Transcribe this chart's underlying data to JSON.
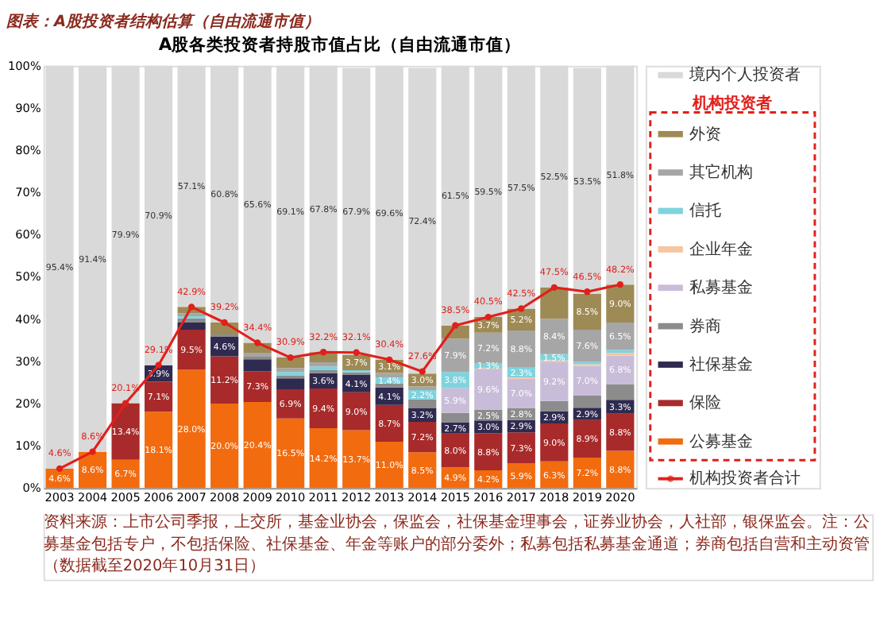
{
  "chart_data": {
    "type": "bar",
    "stacked": true,
    "title": "图表：A股投资者结构估算（自由流通市值）",
    "subtitle": "A股各类投资者持股市值占比（自由流通市值）",
    "categories": [
      "2003",
      "2004",
      "2005",
      "2006",
      "2007",
      "2008",
      "2009",
      "2010",
      "2011",
      "2012",
      "2013",
      "2014",
      "2015",
      "2016",
      "2017",
      "2018",
      "2019",
      "2020"
    ],
    "ylim": [
      0,
      100
    ],
    "yticks": [
      {
        "value": 0,
        "label": "0%"
      },
      {
        "value": 10,
        "label": "10%"
      },
      {
        "value": 20,
        "label": "20%"
      },
      {
        "value": 30,
        "label": "30%"
      },
      {
        "value": 40,
        "label": "40%"
      },
      {
        "value": 50,
        "label": "50%"
      },
      {
        "value": 60,
        "label": "60%"
      },
      {
        "value": 70,
        "label": "70%"
      },
      {
        "value": 80,
        "label": "80%"
      },
      {
        "value": 90,
        "label": "90%"
      },
      {
        "value": 100,
        "label": "100%"
      }
    ],
    "grid": false,
    "legend": "right",
    "legend_title": "机构投资者",
    "series": [
      {
        "name": "公募基金",
        "color": "#f26b0f",
        "values": [
          4.6,
          8.6,
          6.7,
          18.1,
          28.0,
          20.0,
          20.4,
          16.5,
          14.2,
          13.7,
          11.0,
          8.5,
          4.9,
          4.2,
          5.9,
          6.3,
          7.2,
          8.8
        ],
        "value_labels": [
          "4.6%",
          "8.6%",
          "6.7%",
          "18.1%",
          "28.0%",
          "20.0%",
          "20.4%",
          "16.5%",
          "14.2%",
          "13.7%",
          "11.0%",
          "8.5%",
          "4.9%",
          "4.2%",
          "5.9%",
          "6.3%",
          "7.2%",
          "8.8%"
        ]
      },
      {
        "name": "保险",
        "color": "#a82a2a",
        "values": [
          null,
          null,
          13.4,
          7.1,
          9.5,
          11.2,
          7.3,
          6.9,
          9.4,
          9.0,
          8.7,
          7.2,
          8.0,
          8.8,
          7.3,
          9.0,
          8.9,
          8.8
        ],
        "value_labels": [
          null,
          null,
          "13.4%",
          "7.1%",
          "9.5%",
          "11.2%",
          "7.3%",
          "6.9%",
          "9.4%",
          "9.0%",
          "8.7%",
          "7.2%",
          "8.0%",
          "8.8%",
          "7.3%",
          "9.0%",
          "8.9%",
          "8.8%"
        ]
      },
      {
        "name": "社保基金",
        "color": "#2f2a4f",
        "values": [
          null,
          null,
          null,
          3.9,
          1.7,
          4.6,
          2.8,
          2.6,
          3.6,
          4.1,
          4.1,
          3.2,
          2.7,
          3.0,
          2.9,
          2.9,
          2.9,
          3.3
        ],
        "value_labels": [
          null,
          null,
          null,
          "3.9%",
          null,
          "4.6%",
          null,
          null,
          "3.6%",
          "4.1%",
          "4.1%",
          "3.2%",
          "2.7%",
          "3.0%",
          "2.9%",
          "2.9%",
          "2.9%",
          "3.3%"
        ]
      },
      {
        "name": "券商",
        "color": "#8c8c8c",
        "values": [
          null,
          null,
          null,
          null,
          1.0,
          0.6,
          0.6,
          0.7,
          0.7,
          0.6,
          1.0,
          2.1,
          2.2,
          2.5,
          2.8,
          2.4,
          2.9,
          3.7
        ],
        "value_labels": [
          null,
          null,
          null,
          null,
          null,
          null,
          null,
          null,
          null,
          null,
          null,
          null,
          null,
          "2.5%",
          "2.8%",
          null,
          null,
          null
        ]
      },
      {
        "name": "私募基金",
        "color": "#c9bcd9",
        "values": [
          null,
          null,
          null,
          null,
          null,
          null,
          null,
          null,
          null,
          null,
          null,
          null,
          5.9,
          9.6,
          7.0,
          9.2,
          7.0,
          6.8
        ],
        "value_labels": [
          null,
          null,
          null,
          null,
          null,
          null,
          null,
          null,
          null,
          null,
          null,
          null,
          "5.9%",
          "9.6%",
          "7.0%",
          "9.2%",
          "7.0%",
          "6.8%"
        ]
      },
      {
        "name": "企业年金",
        "color": "#f7c59f",
        "values": [
          null,
          null,
          null,
          null,
          null,
          null,
          null,
          null,
          null,
          null,
          null,
          null,
          null,
          0.2,
          0.3,
          0.4,
          0.4,
          0.6
        ],
        "value_labels": [
          null,
          null,
          null,
          null,
          null,
          null,
          null,
          null,
          null,
          null,
          null,
          null,
          null,
          null,
          null,
          null,
          null,
          null
        ]
      },
      {
        "name": "信托",
        "color": "#7fd3de",
        "values": [
          null,
          null,
          null,
          null,
          0.5,
          null,
          null,
          0.8,
          0.9,
          0.5,
          1.4,
          2.2,
          3.8,
          1.3,
          2.3,
          1.5,
          0.6,
          0.7
        ],
        "value_labels": [
          null,
          null,
          null,
          null,
          null,
          null,
          null,
          null,
          null,
          null,
          "1.4%",
          "2.2%",
          "3.8%",
          "1.3%",
          "2.3%",
          "1.5%",
          null,
          null
        ]
      },
      {
        "name": "其它机构",
        "color": "#a6a6a6",
        "values": [
          null,
          null,
          null,
          null,
          0.7,
          null,
          0.8,
          0.9,
          1.0,
          null,
          1.1,
          0.9,
          7.9,
          7.2,
          8.8,
          8.4,
          7.6,
          6.5
        ],
        "value_labels": [
          null,
          null,
          null,
          null,
          null,
          null,
          null,
          null,
          null,
          null,
          null,
          null,
          "7.9%",
          "7.2%",
          "8.8%",
          "8.4%",
          "7.6%",
          "6.5%"
        ]
      },
      {
        "name": "外资",
        "color": "#9e8a55",
        "values": [
          null,
          null,
          null,
          null,
          1.5,
          2.8,
          2.5,
          2.5,
          2.4,
          3.7,
          3.1,
          3.0,
          3.1,
          3.7,
          5.2,
          7.4,
          8.5,
          9.0
        ],
        "value_labels": [
          null,
          null,
          null,
          null,
          null,
          null,
          null,
          null,
          null,
          "3.7%",
          "3.1%",
          "3.0%",
          null,
          "3.7%",
          "5.2%",
          null,
          "8.5%",
          "9.0%"
        ]
      },
      {
        "name": "境内个人投资者",
        "color": "#d9d9d9",
        "values": [
          95.4,
          91.4,
          79.9,
          70.9,
          57.1,
          60.8,
          65.6,
          69.1,
          67.8,
          67.9,
          69.6,
          72.4,
          61.5,
          59.5,
          57.5,
          52.5,
          53.5,
          51.8
        ],
        "value_labels": [
          "95.4%",
          "91.4%",
          "79.9%",
          "70.9%",
          "57.1%",
          "60.8%",
          "65.6%",
          "69.1%",
          "67.8%",
          "67.9%",
          "69.6%",
          "72.4%",
          "61.5%",
          "59.5%",
          "57.5%",
          "52.5%",
          "53.5%",
          "51.8%"
        ]
      },
      {
        "name": "机构投资者合计",
        "type": "line",
        "color": "#e0201b",
        "marker": "circle",
        "values": [
          4.6,
          8.6,
          20.1,
          29.1,
          42.9,
          39.2,
          34.4,
          30.9,
          32.2,
          32.1,
          30.4,
          27.6,
          38.5,
          40.5,
          42.5,
          47.5,
          46.5,
          48.2
        ],
        "value_labels": [
          "4.6%",
          "8.6%",
          "20.1%",
          "29.1%",
          "42.9%",
          "39.2%",
          "34.4%",
          "30.9%",
          "32.2%",
          "32.1%",
          "30.4%",
          "27.6%",
          "38.5%",
          "40.5%",
          "42.5%",
          "47.5%",
          "46.5%",
          "48.2%"
        ]
      }
    ],
    "annotations": [
      "资料来源：上市公司季报，上交所，基金业协会，保监会，社保基金理事会，证券业协会，人社部，银保监会。注：公募基金包括专户，不包括保险、社保基金、年金等账户的部分委外；私募包括私募基金通道；券商包括自营和主动资管（数据截至2020年10月31日）"
    ]
  }
}
